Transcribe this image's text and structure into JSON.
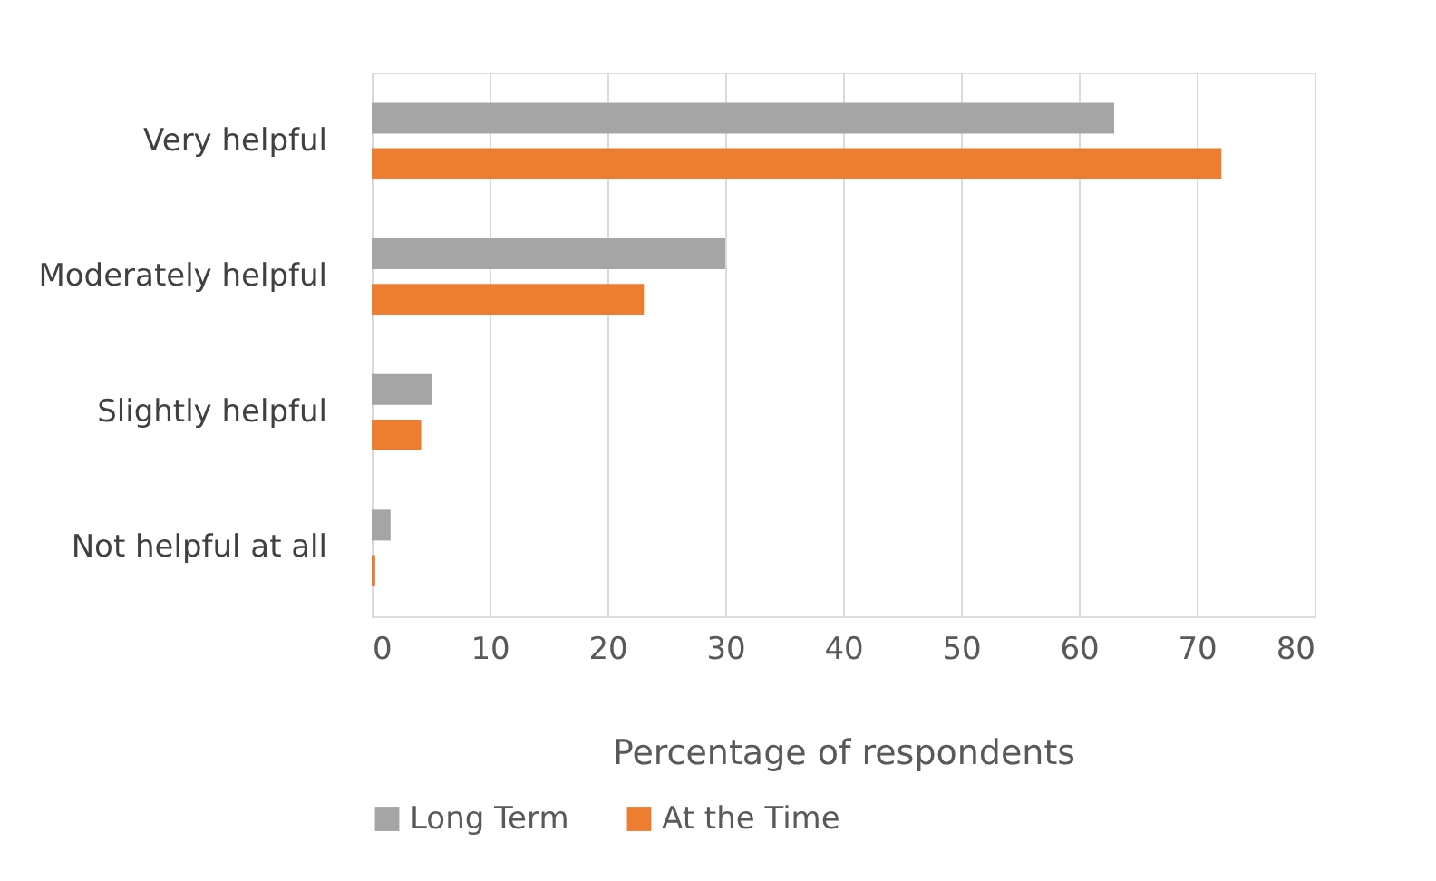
{
  "chart_data": {
    "type": "bar",
    "orientation": "horizontal",
    "xlabel": "Percentage of respondents",
    "categories": [
      "Very helpful",
      "Moderately helpful",
      "Slightly helpful",
      "Not helpful at all"
    ],
    "series": [
      {
        "name": "Long Term",
        "color": "#a5a5a5",
        "values": [
          63,
          30,
          5.1,
          1.6
        ]
      },
      {
        "name": "At the Time",
        "color": "#ed7d31",
        "values": [
          72.1,
          23.1,
          4.2,
          0.3
        ]
      }
    ],
    "xlim": [
      0,
      80
    ],
    "xticks": [
      0,
      10,
      20,
      30,
      40,
      50,
      60,
      70,
      80
    ],
    "grid": "x",
    "legend": "bottom"
  }
}
